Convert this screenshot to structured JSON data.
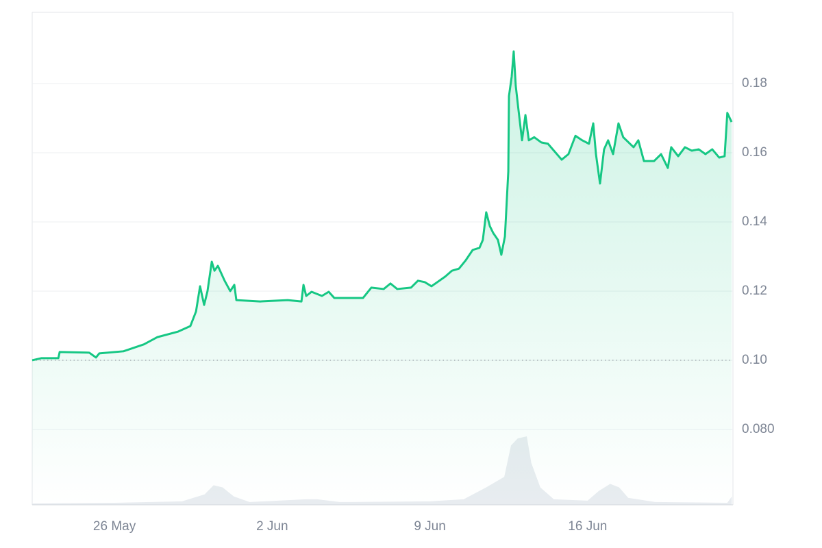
{
  "chart_data": {
    "type": "line",
    "color": "#16c784",
    "x": [
      -3.65,
      -3.25,
      -2.49,
      -2.43,
      -1.12,
      -0.82,
      -0.67,
      0.4,
      1.31,
      1.91,
      2.83,
      3.37,
      3.62,
      3.8,
      3.98,
      4.13,
      4.32,
      4.44,
      4.59,
      4.89,
      5.14,
      5.32,
      5.41,
      6.47,
      7.69,
      8.3,
      8.39,
      8.51,
      8.75,
      9.21,
      9.51,
      9.76,
      11.03,
      11.4,
      11.95,
      12.25,
      12.55,
      13.16,
      13.47,
      13.77,
      14.07,
      14.68,
      14.98,
      15.29,
      15.59,
      15.9,
      16.2,
      16.35,
      16.5,
      16.66,
      16.81,
      17.02,
      17.17,
      17.33,
      17.48,
      17.51,
      17.63,
      17.72,
      17.81,
      17.93,
      18.09,
      18.24,
      18.39,
      18.63,
      18.94,
      19.24,
      19.85,
      20.15,
      20.46,
      20.76,
      21.06,
      21.25,
      21.37,
      21.55,
      21.73,
      21.91,
      22.13,
      22.37,
      22.58,
      23.04,
      23.25,
      23.5,
      23.95,
      24.26,
      24.56,
      24.71,
      25.02,
      25.32,
      25.62,
      25.93,
      26.23,
      26.53,
      26.84,
      27.08,
      27.2,
      27.39
    ],
    "values": [
      0.1,
      0.1006,
      0.1006,
      0.1024,
      0.1022,
      0.1008,
      0.102,
      0.1026,
      0.1046,
      0.1067,
      0.1083,
      0.1099,
      0.1141,
      0.1214,
      0.116,
      0.12,
      0.1285,
      0.1259,
      0.1273,
      0.123,
      0.12,
      0.1218,
      0.1174,
      0.117,
      0.1174,
      0.117,
      0.1218,
      0.1186,
      0.1198,
      0.1186,
      0.1198,
      0.118,
      0.118,
      0.121,
      0.1206,
      0.1222,
      0.1206,
      0.121,
      0.123,
      0.1226,
      0.1214,
      0.1242,
      0.1259,
      0.1265,
      0.1289,
      0.1319,
      0.1325,
      0.1348,
      0.1428,
      0.1388,
      0.1368,
      0.1348,
      0.1305,
      0.1358,
      0.1546,
      0.1764,
      0.182,
      0.1893,
      0.1794,
      0.1725,
      0.1636,
      0.1709,
      0.1636,
      0.1645,
      0.163,
      0.1626,
      0.158,
      0.1596,
      0.1649,
      0.1636,
      0.1626,
      0.1685,
      0.1596,
      0.1511,
      0.161,
      0.1636,
      0.1596,
      0.1685,
      0.1645,
      0.1616,
      0.1636,
      0.1576,
      0.1576,
      0.1596,
      0.1556,
      0.1616,
      0.159,
      0.1616,
      0.1606,
      0.161,
      0.1596,
      0.161,
      0.1586,
      0.159,
      0.1715,
      0.1689
    ],
    "baseline": 0.1,
    "volume": {
      "color": "#e8ecf0",
      "x": [
        -3.65,
        0,
        3,
        4.0,
        4.4,
        4.8,
        5.3,
        6,
        8.5,
        9,
        10,
        14,
        15.5,
        16.5,
        17.3,
        17.6,
        17.9,
        18.3,
        18.5,
        18.9,
        19.5,
        21,
        21.5,
        22,
        22.4,
        22.8,
        24,
        27.2,
        27.4
      ],
      "values": [
        2,
        3,
        5,
        15,
        28,
        25,
        12,
        4,
        8,
        8,
        4,
        5,
        8,
        25,
        40,
        85,
        95,
        98,
        60,
        25,
        8,
        6,
        20,
        30,
        25,
        10,
        4,
        3,
        12
      ]
    },
    "xlim": [
      -3.65,
      27.45
    ],
    "xticks": [
      {
        "value": 0,
        "label": "26 May"
      },
      {
        "value": 7,
        "label": "2 Jun"
      },
      {
        "value": 14,
        "label": "9 Jun"
      },
      {
        "value": 21,
        "label": "16 Jun"
      }
    ],
    "ylim": [
      0.0582,
      0.2006
    ],
    "yticks": [
      {
        "value": 0.08,
        "label": "0.080"
      },
      {
        "value": 0.1,
        "label": "0.10"
      },
      0.12,
      0.14,
      0.16,
      0.18
    ],
    "grid": true
  }
}
